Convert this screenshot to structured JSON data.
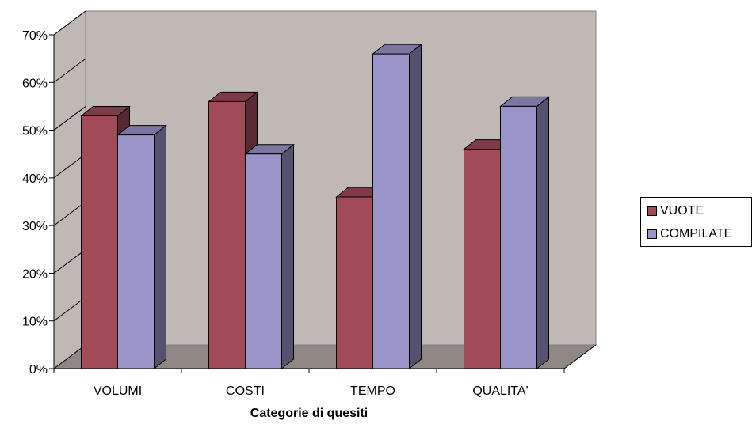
{
  "chart_data": {
    "type": "bar",
    "title": "",
    "xlabel": "Categorie di quesiti",
    "ylabel": "",
    "categories": [
      "VOLUMI",
      "COSTI",
      "TEMPO",
      "QUALITA'"
    ],
    "series": [
      {
        "name": "VUOTE",
        "values": [
          0.53,
          0.56,
          0.36,
          0.46
        ],
        "color": "#A04A5A"
      },
      {
        "name": "COMPILATE",
        "values": [
          0.49,
          0.45,
          0.66,
          0.55
        ],
        "color": "#9B94C9"
      }
    ],
    "ylim": [
      0,
      0.7
    ],
    "yticks": [
      0,
      0.1,
      0.2,
      0.3,
      0.4,
      0.5,
      0.6,
      0.7
    ],
    "ytick_labels": [
      "0%",
      "10%",
      "20%",
      "30%",
      "40%",
      "50%",
      "60%",
      "70%"
    ],
    "style": "3d-column",
    "wall_color": "#C0B8B4",
    "floor_color": "#8F8784",
    "legend_position": "right"
  }
}
